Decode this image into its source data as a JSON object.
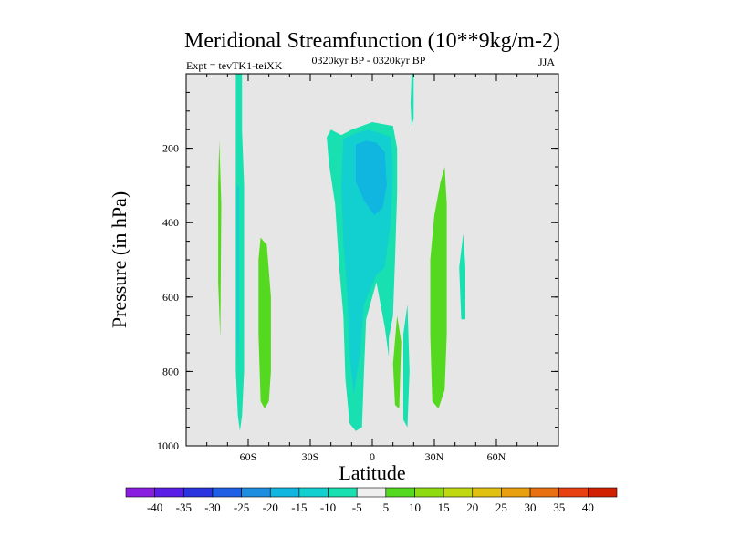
{
  "chart_data": {
    "type": "heatmap",
    "title": "Meridional Streamfunction (10**9kg/m-2)",
    "subtitle_left": "Expt = tevTK1-teiXK",
    "subtitle_center": "0320kyr BP - 0320kyr BP",
    "subtitle_right": "JJA",
    "xlabel": "Latitude",
    "ylabel": "Pressure (in hPa)",
    "xlim": [
      -90,
      90
    ],
    "ylim": [
      1000,
      0
    ],
    "x_ticks": [
      {
        "value": -60,
        "label": "60S"
      },
      {
        "value": -30,
        "label": "30S"
      },
      {
        "value": 0,
        "label": "0"
      },
      {
        "value": 30,
        "label": "30N"
      },
      {
        "value": 60,
        "label": "60N"
      }
    ],
    "y_ticks": [
      {
        "value": 200,
        "label": "200"
      },
      {
        "value": 400,
        "label": "400"
      },
      {
        "value": 600,
        "label": "600"
      },
      {
        "value": 800,
        "label": "800"
      },
      {
        "value": 1000,
        "label": "1000"
      }
    ],
    "background_color": "#e6e6e6",
    "colorbar": {
      "levels": [
        "-40",
        "-35",
        "-30",
        "-25",
        "-20",
        "-15",
        "-10",
        "-5",
        "5",
        "10",
        "15",
        "20",
        "25",
        "30",
        "35",
        "40"
      ],
      "colors": [
        "#8a1ee0",
        "#5a1ee6",
        "#2a35e0",
        "#1f5fe6",
        "#1e8fe0",
        "#10b6e0",
        "#12d0d0",
        "#18e0b0",
        "#efefef",
        "#55d820",
        "#8edc10",
        "#c0d810",
        "#e0c010",
        "#e8a010",
        "#e87010",
        "#e84010",
        "#d02000"
      ]
    },
    "regions": [
      {
        "name": "band-60S",
        "value": -7,
        "points": [
          [
            -66,
            0
          ],
          [
            -63,
            0
          ],
          [
            -63,
            150
          ],
          [
            -62,
            300
          ],
          [
            -62,
            600
          ],
          [
            -62,
            800
          ],
          [
            -63,
            920
          ],
          [
            -64,
            960
          ],
          [
            -65,
            920
          ],
          [
            -66,
            800
          ],
          [
            -66,
            400
          ],
          [
            -66,
            0
          ]
        ]
      },
      {
        "name": "band-60S-core",
        "value": -12,
        "points": [
          [
            -65.5,
            300
          ],
          [
            -64.5,
            300
          ],
          [
            -64.5,
            700
          ],
          [
            -65,
            780
          ],
          [
            -65.5,
            700
          ]
        ]
      },
      {
        "name": "patch-75S",
        "value": 7,
        "points": [
          [
            -74,
            180
          ],
          [
            -73,
            350
          ],
          [
            -73.5,
            710
          ],
          [
            -74.5,
            560
          ],
          [
            -74.5,
            300
          ]
        ]
      },
      {
        "name": "patch-50S",
        "value": 7,
        "points": [
          [
            -54,
            440
          ],
          [
            -51,
            460
          ],
          [
            -49,
            600
          ],
          [
            -49,
            800
          ],
          [
            -50,
            880
          ],
          [
            -52,
            900
          ],
          [
            -54,
            880
          ],
          [
            -55,
            700
          ],
          [
            -55,
            500
          ]
        ]
      },
      {
        "name": "main-cell",
        "value": -8,
        "points": [
          [
            -22,
            170
          ],
          [
            -20,
            150
          ],
          [
            -15,
            165
          ],
          [
            -10,
            150
          ],
          [
            -5,
            140
          ],
          [
            0,
            130
          ],
          [
            5,
            135
          ],
          [
            10,
            140
          ],
          [
            12,
            200
          ],
          [
            12,
            320
          ],
          [
            11,
            500
          ],
          [
            10,
            650
          ],
          [
            8,
            710
          ],
          [
            8,
            760
          ],
          [
            6,
            680
          ],
          [
            2,
            560
          ],
          [
            -3,
            660
          ],
          [
            -4,
            800
          ],
          [
            -5,
            950
          ],
          [
            -8,
            960
          ],
          [
            -11,
            940
          ],
          [
            -13,
            820
          ],
          [
            -14,
            650
          ],
          [
            -16,
            520
          ],
          [
            -18,
            350
          ],
          [
            -21,
            240
          ]
        ]
      },
      {
        "name": "main-cell-inner",
        "value": -12,
        "points": [
          [
            -14,
            175
          ],
          [
            -8,
            160
          ],
          [
            -2,
            150
          ],
          [
            4,
            160
          ],
          [
            9,
            170
          ],
          [
            10,
            250
          ],
          [
            9,
            400
          ],
          [
            6,
            520
          ],
          [
            2,
            540
          ],
          [
            -4,
            620
          ],
          [
            -6,
            760
          ],
          [
            -9,
            860
          ],
          [
            -11,
            760
          ],
          [
            -12,
            600
          ],
          [
            -14,
            450
          ],
          [
            -15,
            300
          ]
        ]
      },
      {
        "name": "main-cell-core",
        "value": -17,
        "points": [
          [
            -8,
            190
          ],
          [
            -3,
            180
          ],
          [
            2,
            185
          ],
          [
            6,
            210
          ],
          [
            7,
            300
          ],
          [
            5,
            360
          ],
          [
            1,
            380
          ],
          [
            -4,
            340
          ],
          [
            -8,
            290
          ]
        ]
      },
      {
        "name": "patch-10N-low",
        "value": 7,
        "points": [
          [
            12,
            650
          ],
          [
            14,
            720
          ],
          [
            13,
            900
          ],
          [
            11,
            890
          ],
          [
            10,
            780
          ]
        ]
      },
      {
        "name": "strip-15N",
        "value": -8,
        "points": [
          [
            17,
            620
          ],
          [
            18,
            800
          ],
          [
            17,
            950
          ],
          [
            15,
            930
          ],
          [
            15,
            700
          ]
        ]
      },
      {
        "name": "patch-30N",
        "value": 7,
        "points": [
          [
            35,
            250
          ],
          [
            36,
            350
          ],
          [
            36,
            700
          ],
          [
            35,
            850
          ],
          [
            32,
            900
          ],
          [
            29,
            880
          ],
          [
            28,
            700
          ],
          [
            28,
            500
          ],
          [
            30,
            380
          ],
          [
            33,
            290
          ]
        ]
      },
      {
        "name": "patch-45N",
        "value": -8,
        "points": [
          [
            44,
            430
          ],
          [
            45,
            520
          ],
          [
            45,
            660
          ],
          [
            43,
            660
          ],
          [
            42,
            520
          ]
        ]
      },
      {
        "name": "top-sliver-20N",
        "value": -8,
        "points": [
          [
            19,
            0
          ],
          [
            20,
            0
          ],
          [
            20,
            120
          ],
          [
            19,
            140
          ],
          [
            18.5,
            80
          ]
        ]
      }
    ]
  }
}
